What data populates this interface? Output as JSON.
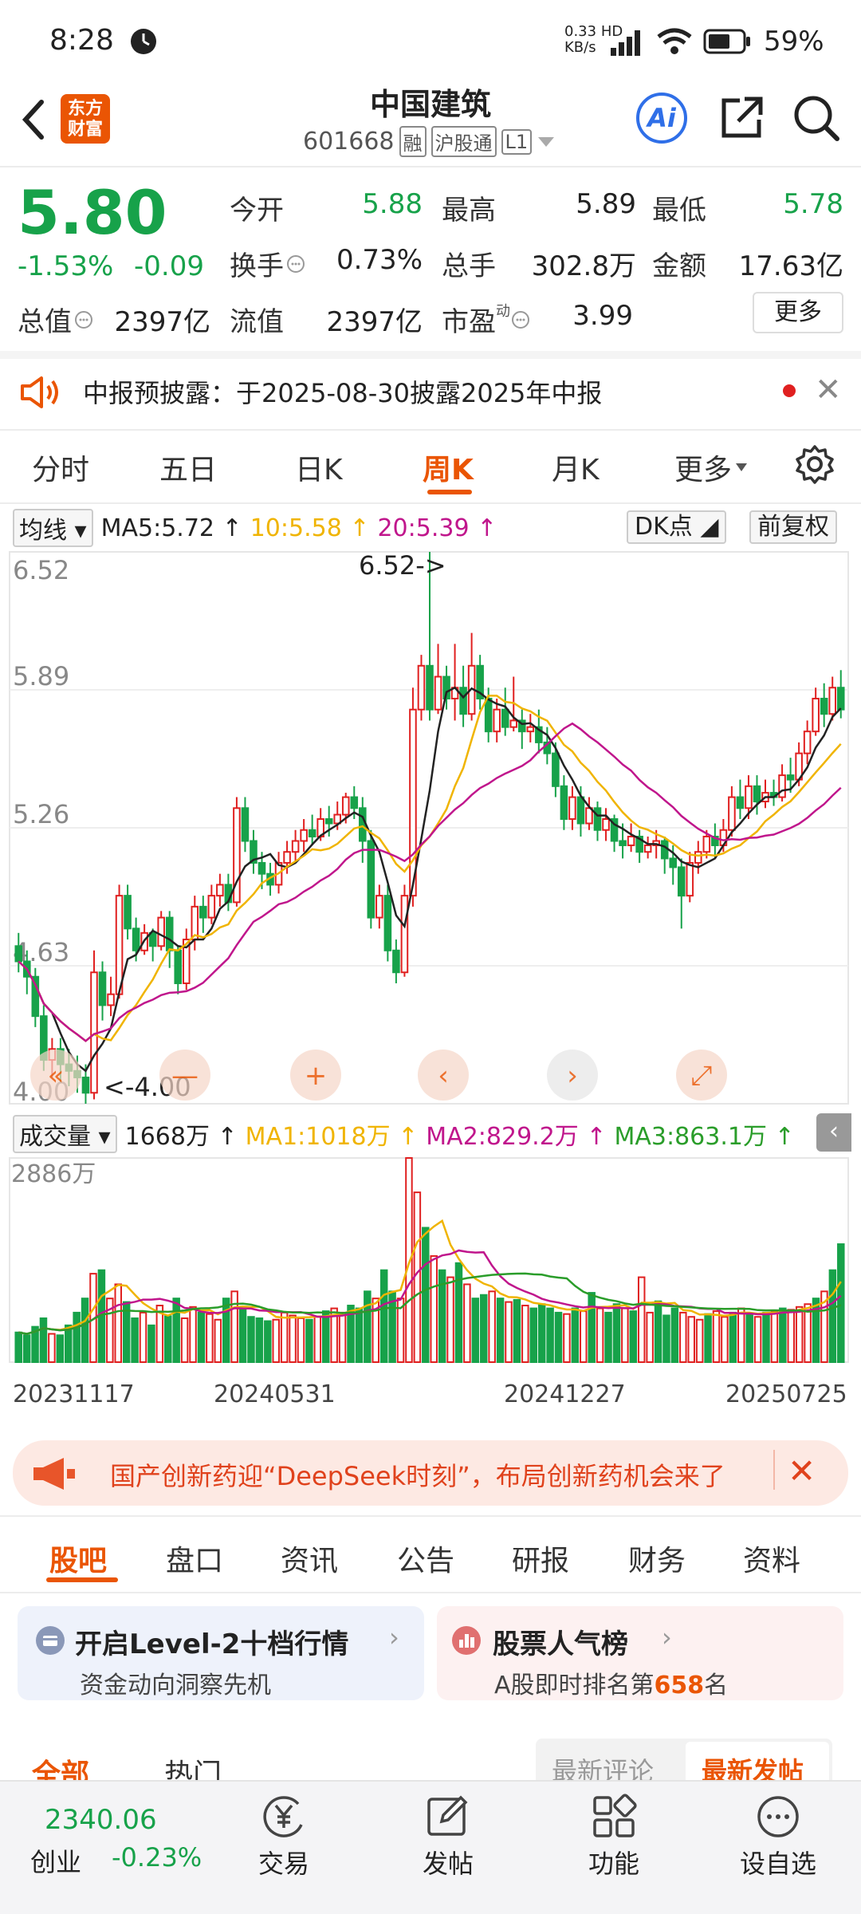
{
  "status_bar": {
    "time": "8:28",
    "net_speed_top": "0.33",
    "net_speed_unit": "KB/s",
    "net_type": "HD",
    "battery": "59%"
  },
  "header": {
    "logo_line1": "东方",
    "logo_line2": "财富",
    "stock_name": "中国建筑",
    "stock_code": "601668",
    "tags": [
      "融",
      "沪股通",
      "L1"
    ],
    "ai_label": "Ai"
  },
  "quote": {
    "price": "5.80",
    "change_pct": "-1.53%",
    "change": "-0.09",
    "open_label": "今开",
    "open": "5.88",
    "high_label": "最高",
    "high": "5.89",
    "low_label": "最低",
    "low": "5.78",
    "turnover_label": "换手",
    "turnover": "0.73%",
    "volume_label": "总手",
    "volume": "302.8万",
    "amount_label": "金额",
    "amount": "17.63亿",
    "mktcap_label": "总值",
    "mktcap": "2397亿",
    "float_label": "流值",
    "float": "2397亿",
    "pe_label": "市盈",
    "pe_sup": "动",
    "pe": "3.99",
    "more_label": "更多"
  },
  "notice": {
    "text": "中报预披露：于2025-08-30披露2025年中报"
  },
  "kline_tabs": [
    "分时",
    "五日",
    "日K",
    "周K",
    "月K",
    "更多"
  ],
  "active_kline_tab": "周K",
  "ma_row": {
    "type": "均线",
    "ma5": "MA5:5.72",
    "ma10": "10:5.58",
    "ma20": "20:5.39",
    "dk": "DK点",
    "adjust": "前复权"
  },
  "volume_row": {
    "type": "成交量",
    "vol": "1668万",
    "ma1": "MA1:1018万",
    "ma2": "MA2:829.2万",
    "ma3": "MA3:863.1万"
  },
  "colors": {
    "up": "#e02020",
    "down": "#17a24a",
    "accent": "#ea5504",
    "ma5": "#222222",
    "ma10": "#f0b400",
    "ma20": "#c0168c",
    "vol_ma3": "#2a9d2a"
  },
  "chart_data": {
    "type": "candlestick",
    "y_ticks": [
      "6.52",
      "5.89",
      "5.26",
      "4.63",
      "4.00"
    ],
    "ylim": [
      4.0,
      6.52
    ],
    "annot_high": "6.52->",
    "annot_low": "<-4.00",
    "vol_top_label": "2886万",
    "x_labels": [
      "20231117",
      "20240531",
      "20241227",
      "20250725"
    ],
    "candles": [
      [
        4.72,
        4.65,
        4.78,
        4.6
      ],
      [
        4.65,
        4.58,
        4.7,
        4.5
      ],
      [
        4.58,
        4.4,
        4.62,
        4.35
      ],
      [
        4.4,
        4.2,
        4.45,
        4.15
      ],
      [
        4.2,
        4.25,
        4.3,
        4.12
      ],
      [
        4.25,
        4.18,
        4.3,
        4.1
      ],
      [
        4.18,
        4.15,
        4.25,
        4.08
      ],
      [
        4.15,
        4.12,
        4.22,
        4.05
      ],
      [
        4.12,
        4.05,
        4.18,
        4.0
      ],
      [
        4.05,
        4.6,
        4.7,
        4.02
      ],
      [
        4.6,
        4.45,
        4.65,
        4.38
      ],
      [
        4.45,
        4.5,
        4.58,
        4.4
      ],
      [
        4.5,
        4.95,
        5.0,
        4.48
      ],
      [
        4.95,
        4.8,
        5.0,
        4.75
      ],
      [
        4.8,
        4.7,
        4.85,
        4.65
      ],
      [
        4.7,
        4.78,
        4.82,
        4.68
      ],
      [
        4.78,
        4.72,
        4.8,
        4.65
      ],
      [
        4.72,
        4.85,
        4.88,
        4.7
      ],
      [
        4.85,
        4.7,
        4.88,
        4.62
      ],
      [
        4.7,
        4.55,
        4.72,
        4.5
      ],
      [
        4.55,
        4.75,
        4.8,
        4.52
      ],
      [
        4.75,
        4.9,
        4.95,
        4.7
      ],
      [
        4.9,
        4.85,
        4.95,
        4.78
      ],
      [
        4.85,
        4.95,
        5.0,
        4.82
      ],
      [
        4.95,
        5.0,
        5.05,
        4.9
      ],
      [
        5.0,
        4.92,
        5.05,
        4.88
      ],
      [
        4.92,
        5.35,
        5.4,
        4.9
      ],
      [
        5.35,
        5.2,
        5.4,
        5.15
      ],
      [
        5.2,
        5.1,
        5.25,
        5.05
      ],
      [
        5.1,
        5.05,
        5.15,
        4.98
      ],
      [
        5.05,
        5.0,
        5.1,
        4.95
      ],
      [
        5.0,
        5.1,
        5.15,
        4.96
      ],
      [
        5.1,
        5.15,
        5.2,
        5.05
      ],
      [
        5.15,
        5.2,
        5.25,
        5.1
      ],
      [
        5.2,
        5.25,
        5.3,
        5.15
      ],
      [
        5.25,
        5.22,
        5.32,
        5.18
      ],
      [
        5.22,
        5.3,
        5.35,
        5.2
      ],
      [
        5.3,
        5.28,
        5.36,
        5.22
      ],
      [
        5.28,
        5.32,
        5.38,
        5.25
      ],
      [
        5.32,
        5.4,
        5.42,
        5.28
      ],
      [
        5.4,
        5.35,
        5.45,
        5.3
      ],
      [
        5.35,
        5.2,
        5.4,
        5.1
      ],
      [
        5.2,
        4.85,
        5.25,
        4.8
      ],
      [
        4.85,
        4.95,
        5.0,
        4.8
      ],
      [
        4.95,
        4.7,
        5.0,
        4.65
      ],
      [
        4.7,
        4.6,
        4.75,
        4.55
      ],
      [
        4.6,
        4.95,
        5.0,
        4.58
      ],
      [
        4.95,
        5.8,
        5.9,
        4.9
      ],
      [
        5.8,
        6.0,
        6.05,
        5.75
      ],
      [
        6.0,
        5.8,
        6.52,
        5.75
      ],
      [
        5.8,
        5.95,
        6.1,
        5.78
      ],
      [
        5.95,
        5.85,
        6.0,
        5.8
      ],
      [
        5.85,
        5.9,
        6.1,
        5.75
      ],
      [
        5.9,
        5.78,
        6.0,
        5.72
      ],
      [
        5.78,
        6.0,
        6.15,
        5.75
      ],
      [
        6.0,
        5.85,
        6.05,
        5.8
      ],
      [
        5.85,
        5.7,
        5.9,
        5.65
      ],
      [
        5.7,
        5.8,
        5.85,
        5.65
      ],
      [
        5.8,
        5.72,
        5.9,
        5.68
      ],
      [
        5.72,
        5.75,
        5.95,
        5.7
      ],
      [
        5.75,
        5.7,
        5.8,
        5.62
      ],
      [
        5.7,
        5.72,
        5.78,
        5.65
      ],
      [
        5.72,
        5.65,
        5.8,
        5.6
      ],
      [
        5.65,
        5.6,
        5.72,
        5.55
      ],
      [
        5.6,
        5.45,
        5.65,
        5.4
      ],
      [
        5.45,
        5.3,
        5.5,
        5.25
      ],
      [
        5.3,
        5.4,
        5.45,
        5.25
      ],
      [
        5.4,
        5.28,
        5.45,
        5.22
      ],
      [
        5.28,
        5.35,
        5.4,
        5.25
      ],
      [
        5.35,
        5.25,
        5.38,
        5.2
      ],
      [
        5.25,
        5.3,
        5.35,
        5.2
      ],
      [
        5.3,
        5.2,
        5.32,
        5.15
      ],
      [
        5.2,
        5.18,
        5.28,
        5.12
      ],
      [
        5.18,
        5.22,
        5.28,
        5.15
      ],
      [
        5.22,
        5.15,
        5.25,
        5.1
      ],
      [
        5.15,
        5.18,
        5.22,
        5.12
      ],
      [
        5.18,
        5.2,
        5.25,
        5.12
      ],
      [
        5.2,
        5.12,
        5.22,
        5.05
      ],
      [
        5.12,
        5.08,
        5.18,
        5.0
      ],
      [
        5.08,
        4.95,
        5.12,
        4.8
      ],
      [
        4.95,
        5.1,
        5.15,
        4.92
      ],
      [
        5.1,
        5.15,
        5.2,
        5.05
      ],
      [
        5.15,
        5.22,
        5.25,
        5.12
      ],
      [
        5.22,
        5.18,
        5.28,
        5.12
      ],
      [
        5.18,
        5.25,
        5.3,
        5.15
      ],
      [
        5.25,
        5.4,
        5.45,
        5.22
      ],
      [
        5.4,
        5.35,
        5.48,
        5.3
      ],
      [
        5.35,
        5.45,
        5.5,
        5.3
      ],
      [
        5.45,
        5.38,
        5.5,
        5.32
      ],
      [
        5.38,
        5.42,
        5.48,
        5.35
      ],
      [
        5.42,
        5.4,
        5.48,
        5.36
      ],
      [
        5.4,
        5.5,
        5.55,
        5.38
      ],
      [
        5.5,
        5.48,
        5.58,
        5.42
      ],
      [
        5.48,
        5.6,
        5.65,
        5.45
      ],
      [
        5.6,
        5.7,
        5.75,
        5.55
      ],
      [
        5.7,
        5.85,
        5.9,
        5.68
      ],
      [
        5.85,
        5.78,
        5.92,
        5.72
      ],
      [
        5.78,
        5.9,
        5.95,
        5.75
      ],
      [
        5.9,
        5.8,
        5.98,
        5.76
      ]
    ],
    "volumes_wan": [
      420,
      380,
      500,
      620,
      400,
      380,
      520,
      700,
      900,
      1250,
      1300,
      900,
      1100,
      850,
      620,
      700,
      520,
      800,
      650,
      900,
      620,
      780,
      700,
      680,
      600,
      900,
      1000,
      760,
      640,
      620,
      580,
      600,
      700,
      660,
      620,
      600,
      640,
      720,
      760,
      700,
      800,
      760,
      1000,
      900,
      1300,
      1000,
      900,
      2886,
      2400,
      1900,
      1500,
      1300,
      1200,
      1400,
      1100,
      900,
      950,
      1000,
      900,
      850,
      880,
      800,
      760,
      820,
      760,
      700,
      680,
      760,
      720,
      980,
      760,
      700,
      820,
      760,
      720,
      1200,
      700,
      860,
      660,
      760,
      700,
      640,
      600,
      680,
      720,
      640,
      700,
      760,
      680,
      640,
      700,
      720,
      760,
      740,
      780,
      820,
      900,
      1000,
      1300,
      1668
    ]
  },
  "ad_banner": {
    "text": "国产创新药迎“DeepSeek时刻”，布局创新药机会来了"
  },
  "bottom_tabs": [
    "股吧",
    "盘口",
    "资讯",
    "公告",
    "研报",
    "财务",
    "资料"
  ],
  "active_bottom_tab": "股吧",
  "cards": {
    "level2_title": "开启Level-2十档行情",
    "level2_sub": "资金动向洞察先机",
    "rank_title": "股票人气榜",
    "rank_sub_prefix": "A股即时排名第",
    "rank_num": "658",
    "rank_sub_suffix": "名"
  },
  "filters": {
    "all": "全部",
    "hot": "热门",
    "latest_comment": "最新评论",
    "latest_post": "最新发帖"
  },
  "bottom_nav": {
    "index_value": "2340.06",
    "index_name": "创业",
    "index_change": "-0.23%",
    "items": [
      "交易",
      "发帖",
      "功能",
      "设自选"
    ]
  }
}
